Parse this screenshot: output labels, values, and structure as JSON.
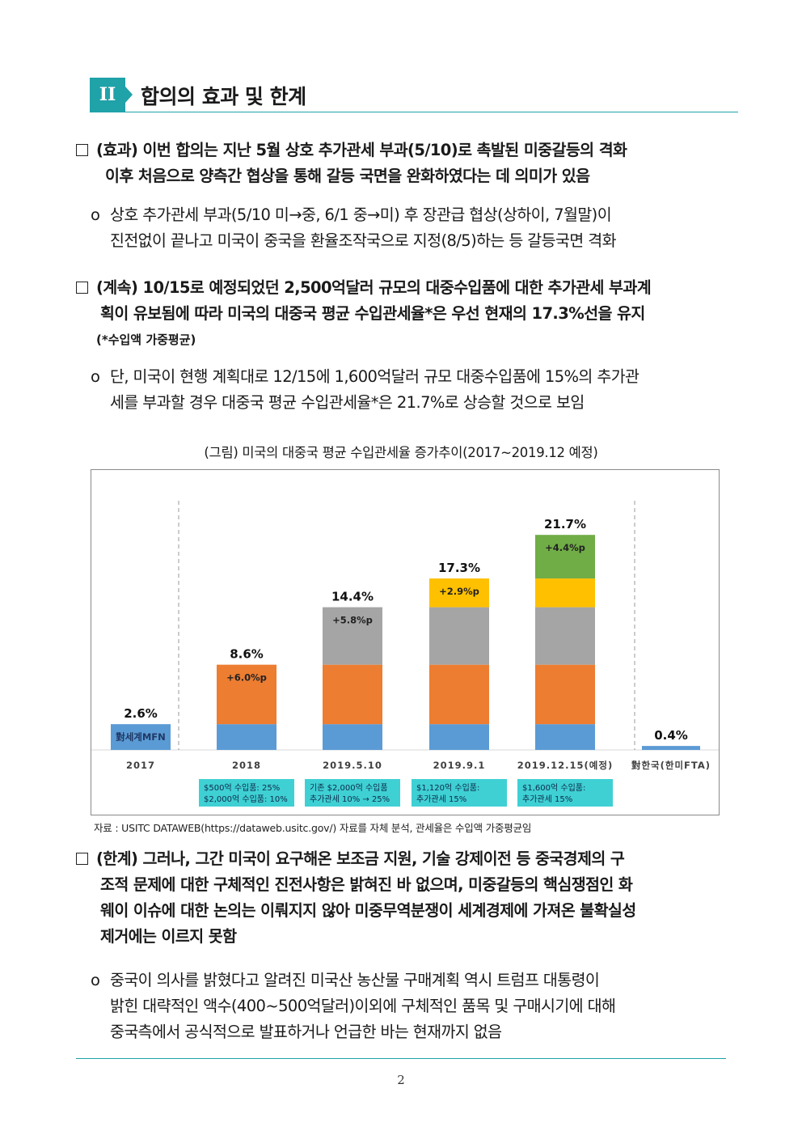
{
  "section": {
    "number": "II",
    "title": "합의의 효과 및 한계"
  },
  "p1": {
    "line1": "(효과) 이번 합의는 지난 5월 상호 추가관세 부과(5/10)로 촉발된 미중갈등의 격화",
    "line2": "이후 처음으로 양측간 협상을 통해 갈등 국면을 완화하였다는 데 의미가 있음"
  },
  "p1_sub": {
    "marker": "o",
    "line1": "상호 추가관세 부과(5/10 미→중, 6/1 중→미) 후 장관급 협상(상하이, 7월말)이",
    "line2": "진전없이 끝나고 미국이 중국을 환율조작국으로 지정(8/5)하는 등 갈등국면 격화"
  },
  "p2": {
    "line1": "(계속) 10/15로 예정되었던 2,500억달러 규모의 대중수입품에 대한 추가관세 부과계",
    "line2": "획이 유보됨에 따라 미국의 대중국 평균 수입관세율*은 우선 현재의 17.3%선을 유지",
    "note": "(*수입액 가중평균)"
  },
  "p2_sub": {
    "marker": "o",
    "line1": "단, 미국이 현행 계획대로 12/15에 1,600억달러 규모 대중수입품에 15%의 추가관",
    "line2": "세를 부과할 경우 대중국 평균 수입관세율*은 21.7%로 상승할 것으로 보임"
  },
  "figure_caption": "(그림) 미국의 대중국 평균 수입관세율 증가추이(2017~2019.12 예정)",
  "chart_data": {
    "type": "bar",
    "stacked": true,
    "title": "",
    "categories": [
      "2017",
      "2018",
      "2019.5.10",
      "2019.9.1",
      "2019.12.15(예정)",
      "對한국(한미FTA)"
    ],
    "totals": [
      2.6,
      8.6,
      14.4,
      17.3,
      21.7,
      0.4
    ],
    "total_labels": [
      "2.6%",
      "8.6%",
      "14.4%",
      "17.3%",
      "21.7%",
      "0.4%"
    ],
    "series": [
      {
        "color": "#5b9bd5",
        "values": [
          2.6,
          2.6,
          2.6,
          2.6,
          2.6,
          0.4
        ]
      },
      {
        "color": "#ed7d31",
        "values": [
          0,
          6.0,
          6.0,
          6.0,
          6.0,
          0
        ]
      },
      {
        "color": "#a5a5a5",
        "values": [
          0,
          0,
          5.8,
          5.8,
          5.8,
          0
        ]
      },
      {
        "color": "#ffc000",
        "values": [
          0,
          0,
          0,
          2.9,
          2.9,
          0
        ]
      },
      {
        "color": "#70ad47",
        "values": [
          0,
          0,
          0,
          0,
          4.4,
          0
        ]
      }
    ],
    "segment_labels": [
      {
        "category": "2017",
        "text": "對세계MFN"
      },
      {
        "category": "2018",
        "text": "+6.0%p"
      },
      {
        "category": "2019.5.10",
        "text": "+5.8%p"
      },
      {
        "category": "2019.9.1",
        "text": "+2.9%p"
      },
      {
        "category": "2019.12.15(예정)",
        "text": "+4.4%p"
      }
    ],
    "notes": [
      {
        "category": "2018",
        "line1": "$500억 수입품: 25%",
        "line2": "$2,000억 수입품: 10%"
      },
      {
        "category": "2019.5.10",
        "line1": "기존 $2,000억 수입품",
        "line2": "추가관세 10% → 25%"
      },
      {
        "category": "2019.9.1",
        "line1": "$1,120억 수입품:",
        "line2": "추가관세 15%"
      },
      {
        "category": "2019.12.15(예정)",
        "line1": "$1,600억 수입품:",
        "line2": "추가관세 15%"
      }
    ],
    "note_color": "#3fd0d4",
    "ylim": [
      0,
      24
    ],
    "grid": false
  },
  "source_note": "자료 : USITC DATAWEB(https://dataweb.usitc.gov/) 자료를 자체 분석, 관세율은 수입액 가중평균임",
  "p3": {
    "line1": "(한계) 그러나, 그간 미국이 요구해온 보조금 지원, 기술 강제이전 등 중국경제의 구",
    "line2": "조적 문제에 대한 구체적인 진전사항은 밝혀진 바 없으며, 미중갈등의 핵심쟁점인 화",
    "line3": "웨이 이슈에 대한 논의는 이뤄지지 않아 미중무역분쟁이 세계경제에 가져온 불확실성",
    "line4": "제거에는 이르지 못함"
  },
  "p3_sub": {
    "marker": "o",
    "line1": "중국이 의사를 밝혔다고 알려진 미국산 농산물 구매계획 역시 트럼프 대통령이",
    "line2": "밝힌 대략적인 액수(400~500억달러)이외에 구체적인 품목 및 구매시기에 대해",
    "line3": "중국측에서 공식적으로 발표하거나 언급한 바는 현재까지 없음"
  },
  "page_number": "2"
}
